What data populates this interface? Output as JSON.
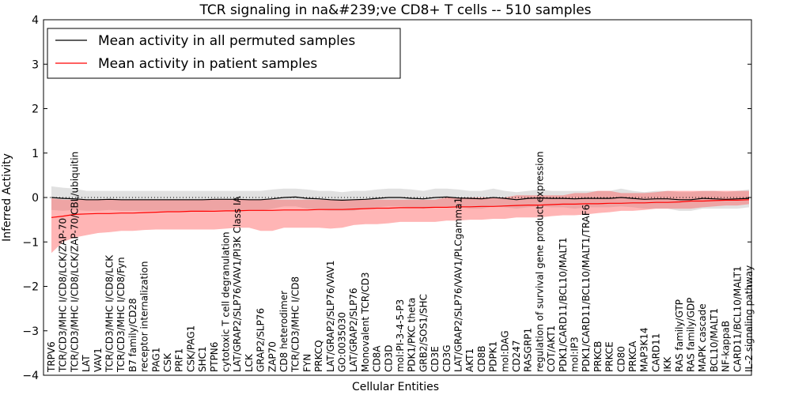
{
  "chart_data": {
    "type": "line",
    "title": "TCR signaling in na&#239;ve CD8+ T cells -- 510 samples",
    "xlabel": "Cellular Entities",
    "ylabel": "Inferred Activity",
    "ylim": [
      -4,
      4
    ],
    "yticks": [
      -4,
      -3,
      -2,
      -1,
      0,
      1,
      2,
      3,
      4
    ],
    "legend_position": "upper-left",
    "categories": [
      "TRPV6",
      "TCR/CD3/MHC I/CD8/LCK/ZAP-70",
      "TCR/CD3/MHC I/CD8/LCK/ZAP-70/CBL/ubiquitin",
      "LAT",
      "VAV1",
      "TCR/CD3/MHC I/CD8/LCK",
      "TCR/CD3/MHC I/CD8/Fyn",
      "B7 family/CD28",
      "receptor internalization",
      "PAG1",
      "CSK",
      "PRF1",
      "CSK/PAG1",
      "SHC1",
      "PTPN6",
      "cytotoxic T cell degranulation",
      "LAT/GRAP2/SLP76/VAV1/PI3K Class IA",
      "LCK",
      "GRAP2/SLP76",
      "ZAP70",
      "CD8 heterodimer",
      "TCR/CD3/MHC I/CD8",
      "FYN",
      "PRKCQ",
      "LAT/GRAP2/SLP76/VAV1",
      "GO:0035030",
      "LAT/GRAP2/SLP76",
      "Monovalent TCR/CD3",
      "CD8A",
      "CD3D",
      "mol:PI-3-4-5-P3",
      "PDK1/PKC theta",
      "GRB2/SOS1/SHC",
      "CD3E",
      "CD3G",
      "LAT/GRAP2/SLP76/VAV1/PLCgamma1",
      "AKT1",
      "CD8B",
      "PDPK1",
      "mol:DAG",
      "CD247",
      "RASGRP1",
      "regulation of survival gene product expression",
      "COT/AKT1",
      "PDK1/CARD11/BCL10/MALT1",
      "mol:IP3",
      "PDK1/CARD11/BCL10/MALT1/TRAF6",
      "PRKCB",
      "PRKCE",
      "CD80",
      "PRKCA",
      "MAP3K14",
      "CARD11",
      "IKK",
      "RAS family/GTP",
      "RAS family/GDP",
      "MAPK cascade",
      "BCL10/MALT1",
      "NF-kappaB",
      "CARD11/BCL10/MALT1",
      "IL-2 signaling pathway"
    ],
    "series": [
      {
        "name": "Mean activity in all permuted samples",
        "color": "#000000",
        "values": [
          0.0,
          -0.02,
          -0.03,
          -0.05,
          -0.05,
          -0.04,
          -0.05,
          -0.05,
          -0.05,
          -0.05,
          -0.05,
          -0.05,
          -0.05,
          -0.05,
          -0.04,
          -0.04,
          -0.04,
          -0.05,
          -0.05,
          -0.03,
          0.0,
          0.01,
          -0.02,
          -0.03,
          -0.05,
          -0.06,
          -0.05,
          -0.04,
          -0.02,
          0.0,
          0.0,
          -0.02,
          -0.03,
          0.0,
          0.01,
          -0.01,
          -0.02,
          -0.03,
          0.0,
          -0.02,
          -0.05,
          -0.02,
          -0.01,
          -0.02,
          -0.02,
          -0.03,
          -0.02,
          -0.02,
          -0.02,
          0.0,
          -0.02,
          -0.04,
          -0.03,
          -0.03,
          -0.05,
          -0.05,
          -0.02,
          -0.03,
          -0.04,
          -0.03,
          -0.02
        ],
        "lower": [
          -0.28,
          -0.3,
          -0.28,
          -0.3,
          -0.3,
          -0.28,
          -0.3,
          -0.3,
          -0.3,
          -0.3,
          -0.3,
          -0.3,
          -0.3,
          -0.3,
          -0.28,
          -0.28,
          -0.28,
          -0.3,
          -0.3,
          -0.25,
          -0.2,
          -0.2,
          -0.25,
          -0.28,
          -0.3,
          -0.3,
          -0.3,
          -0.25,
          -0.22,
          -0.2,
          -0.2,
          -0.22,
          -0.25,
          -0.2,
          -0.2,
          -0.22,
          -0.25,
          -0.25,
          -0.2,
          -0.22,
          -0.25,
          -0.22,
          -0.2,
          -0.22,
          -0.22,
          -0.25,
          -0.22,
          -0.22,
          -0.22,
          -0.2,
          -0.22,
          -0.25,
          -0.25,
          -0.25,
          -0.3,
          -0.3,
          -0.25,
          -0.25,
          -0.25,
          -0.25,
          -0.22
        ],
        "upper": [
          0.25,
          0.22,
          0.2,
          0.15,
          0.15,
          0.15,
          0.15,
          0.15,
          0.15,
          0.15,
          0.15,
          0.15,
          0.15,
          0.15,
          0.15,
          0.15,
          0.15,
          0.15,
          0.15,
          0.18,
          0.2,
          0.2,
          0.18,
          0.15,
          0.15,
          0.12,
          0.15,
          0.15,
          0.18,
          0.2,
          0.2,
          0.18,
          0.15,
          0.2,
          0.2,
          0.18,
          0.15,
          0.15,
          0.2,
          0.15,
          0.12,
          0.15,
          0.18,
          0.15,
          0.15,
          0.15,
          0.15,
          0.15,
          0.15,
          0.2,
          0.15,
          0.12,
          0.15,
          0.15,
          0.12,
          0.12,
          0.15,
          0.15,
          0.12,
          0.15,
          0.18
        ]
      },
      {
        "name": "Mean activity in patient samples",
        "color": "#ff0000",
        "values": [
          -0.45,
          -0.42,
          -0.38,
          -0.37,
          -0.36,
          -0.36,
          -0.35,
          -0.35,
          -0.34,
          -0.33,
          -0.32,
          -0.32,
          -0.31,
          -0.31,
          -0.31,
          -0.3,
          -0.3,
          -0.29,
          -0.29,
          -0.29,
          -0.28,
          -0.28,
          -0.28,
          -0.27,
          -0.27,
          -0.27,
          -0.26,
          -0.25,
          -0.24,
          -0.24,
          -0.23,
          -0.23,
          -0.23,
          -0.22,
          -0.22,
          -0.21,
          -0.21,
          -0.2,
          -0.2,
          -0.19,
          -0.18,
          -0.17,
          -0.17,
          -0.16,
          -0.15,
          -0.15,
          -0.14,
          -0.14,
          -0.13,
          -0.13,
          -0.12,
          -0.12,
          -0.11,
          -0.11,
          -0.1,
          -0.08,
          -0.08,
          -0.07,
          -0.06,
          -0.06,
          -0.05
        ],
        "lower": [
          -1.25,
          -1.0,
          -0.9,
          -0.85,
          -0.8,
          -0.78,
          -0.75,
          -0.75,
          -0.73,
          -0.72,
          -0.72,
          -0.72,
          -0.72,
          -0.72,
          -0.72,
          -0.7,
          -0.68,
          -0.68,
          -0.75,
          -0.75,
          -0.68,
          -0.68,
          -0.68,
          -0.68,
          -0.7,
          -0.68,
          -0.62,
          -0.6,
          -0.6,
          -0.58,
          -0.55,
          -0.55,
          -0.55,
          -0.55,
          -0.52,
          -0.52,
          -0.5,
          -0.5,
          -0.48,
          -0.48,
          -0.45,
          -0.45,
          -0.45,
          -0.42,
          -0.4,
          -0.4,
          -0.38,
          -0.35,
          -0.33,
          -0.3,
          -0.3,
          -0.28,
          -0.25,
          -0.25,
          -0.25,
          -0.25,
          -0.22,
          -0.2,
          -0.18,
          -0.18,
          -0.15
        ],
        "upper": [
          -0.02,
          -0.05,
          -0.05,
          -0.05,
          -0.05,
          -0.05,
          -0.05,
          -0.05,
          -0.05,
          -0.05,
          -0.05,
          -0.05,
          -0.05,
          -0.05,
          -0.05,
          -0.05,
          -0.05,
          -0.05,
          -0.05,
          -0.05,
          -0.05,
          -0.05,
          -0.05,
          -0.05,
          -0.05,
          -0.05,
          -0.05,
          -0.05,
          -0.05,
          -0.05,
          -0.05,
          -0.05,
          -0.05,
          -0.05,
          0.0,
          0.0,
          0.0,
          0.0,
          0.0,
          0.0,
          0.05,
          0.05,
          0.05,
          0.05,
          0.05,
          0.1,
          0.1,
          0.15,
          0.15,
          0.1,
          0.1,
          0.1,
          0.12,
          0.15,
          0.15,
          0.15,
          0.15,
          0.15,
          0.15,
          0.15,
          0.15
        ]
      }
    ]
  }
}
